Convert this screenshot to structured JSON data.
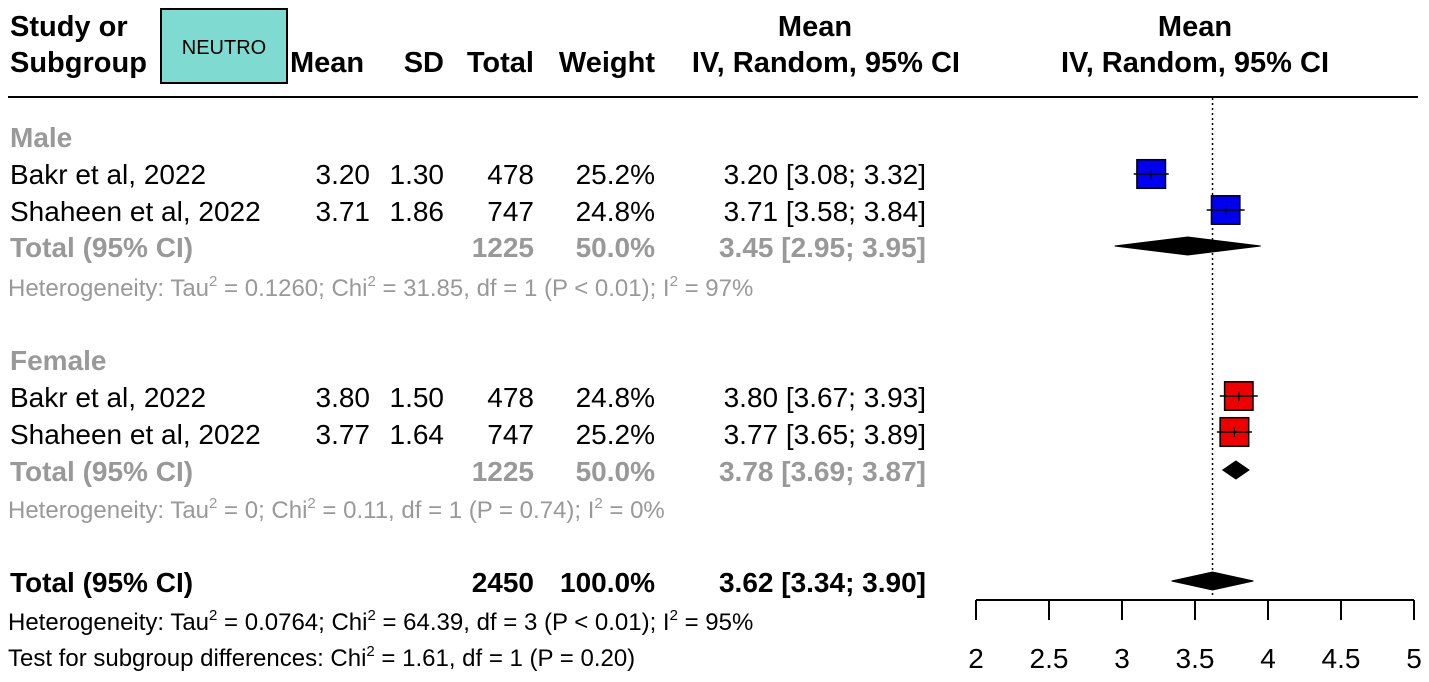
{
  "header": {
    "study_line1": "Study or",
    "study_line2": "Subgroup",
    "badge": "NEUTRO",
    "mean": "Mean",
    "sd": "SD",
    "total": "Total",
    "weight": "Weight",
    "ci_line1": "Mean",
    "ci_line2": "IV, Random, 95% CI",
    "plot_line1": "Mean",
    "plot_line2": "IV, Random, 95% CI"
  },
  "groups": [
    {
      "name": "Male",
      "studies": [
        {
          "study": "Bakr et al, 2022",
          "mean": "3.20",
          "sd": "1.30",
          "total": "478",
          "weight": "25.2%",
          "ci": "3.20 [3.08; 3.32]"
        },
        {
          "study": "Shaheen et al, 2022",
          "mean": "3.71",
          "sd": "1.86",
          "total": "747",
          "weight": "24.8%",
          "ci": "3.71 [3.58; 3.84]"
        }
      ],
      "total": {
        "label": "Total (95% CI)",
        "total": "1225",
        "weight": "50.0%",
        "ci": "3.45 [2.95; 3.95]"
      },
      "het": {
        "p1": "Heterogeneity: Tau",
        "p2": " = 0.1260; Chi",
        "p3": " = 31.85, df = 1 (P < 0.01); I",
        "p4": " = 97%",
        "sup": "2"
      }
    },
    {
      "name": "Female",
      "studies": [
        {
          "study": "Bakr et al, 2022",
          "mean": "3.80",
          "sd": "1.50",
          "total": "478",
          "weight": "24.8%",
          "ci": "3.80 [3.67; 3.93]"
        },
        {
          "study": "Shaheen et al, 2022",
          "mean": "3.77",
          "sd": "1.64",
          "total": "747",
          "weight": "25.2%",
          "ci": "3.77 [3.65; 3.89]"
        }
      ],
      "total": {
        "label": "Total (95% CI)",
        "total": "1225",
        "weight": "50.0%",
        "ci": "3.78 [3.69; 3.87]"
      },
      "het": {
        "p1": "Heterogeneity: Tau",
        "p2": " = 0; Chi",
        "p3": " = 0.11, df = 1 (P = 0.74); I",
        "p4": " = 0%",
        "sup": "2"
      }
    }
  ],
  "overall": {
    "label": "Total (95% CI)",
    "total": "2450",
    "weight": "100.0%",
    "ci": "3.62 [3.34; 3.90]",
    "het": {
      "p1": "Heterogeneity: Tau",
      "p2": " = 0.0764; Chi",
      "p3": " = 64.39, df = 3 (P < 0.01); I",
      "p4": " = 95%",
      "sup": "2"
    },
    "subgroup": {
      "p1": "Test for subgroup differences: Chi",
      "p2": " = 1.61, df = 1 (P = 0.20)",
      "sup": "2"
    }
  },
  "colors": {
    "male": "#0000ee",
    "female": "#ee0000",
    "diamond": "#000000",
    "grey_text": "#999999",
    "badge": "#7fdad2"
  },
  "chart_data": {
    "type": "forest",
    "xlim": [
      2,
      5
    ],
    "ticks": [
      "2",
      "2.5",
      "3",
      "3.5",
      "4",
      "4.5",
      "5"
    ],
    "tick_values": [
      2,
      2.5,
      3,
      3.5,
      4,
      4.5,
      5
    ],
    "reference_line": 3.62,
    "studies": [
      {
        "group": "Male",
        "mean": 3.2,
        "lo": 3.08,
        "hi": 3.32,
        "weight": 25.2
      },
      {
        "group": "Male",
        "mean": 3.71,
        "lo": 3.58,
        "hi": 3.84,
        "weight": 24.8
      },
      {
        "group": "Female",
        "mean": 3.8,
        "lo": 3.67,
        "hi": 3.93,
        "weight": 24.8
      },
      {
        "group": "Female",
        "mean": 3.77,
        "lo": 3.65,
        "hi": 3.89,
        "weight": 25.2
      }
    ],
    "diamonds": [
      {
        "label": "Male",
        "mean": 3.45,
        "lo": 2.95,
        "hi": 3.95
      },
      {
        "label": "Female",
        "mean": 3.78,
        "lo": 3.69,
        "hi": 3.87
      },
      {
        "label": "Overall",
        "mean": 3.62,
        "lo": 3.34,
        "hi": 3.9
      }
    ]
  }
}
